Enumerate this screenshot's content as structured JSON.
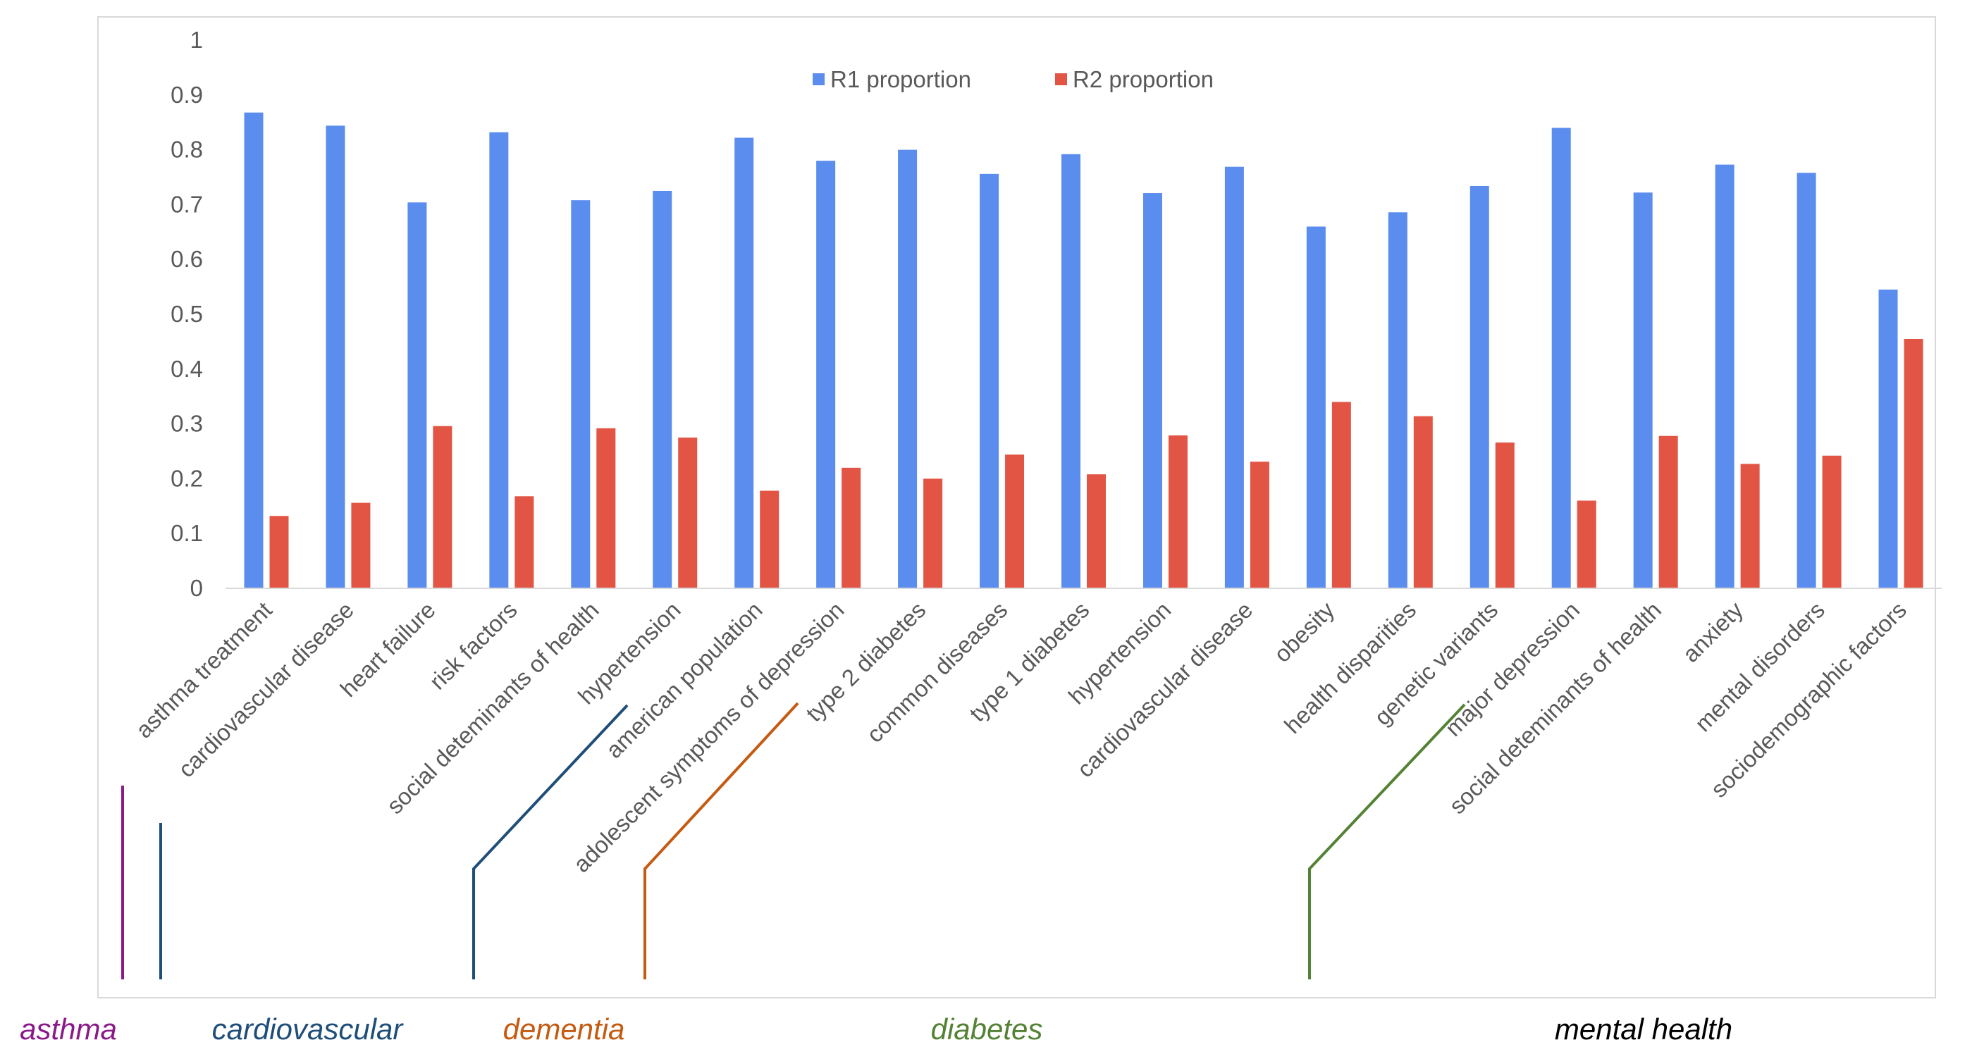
{
  "chart_data": {
    "type": "bar",
    "title": "",
    "xlabel": "",
    "ylabel": "",
    "ylim": [
      0,
      1
    ],
    "yticks": [
      "0",
      "0.1",
      "0.2",
      "0.3",
      "0.4",
      "0.5",
      "0.6",
      "0.7",
      "0.8",
      "0.9",
      "1"
    ],
    "grid": false,
    "legend_position": "top-center",
    "categories": [
      "asthma treatment",
      "cardiovascular disease",
      "heart failure",
      "risk factors",
      "social deteminants of health",
      "hypertension",
      "american population",
      "adolescent symptoms of depression",
      "type 2 diabetes",
      "common diseases",
      "type 1 diabetes",
      "hypertension",
      "cardiovascular disease",
      "obesity",
      "health disparities",
      "genetic variants",
      "major depression",
      "social deteminants of health",
      "anxiety",
      "mental disorders",
      "sociodemographic factors"
    ],
    "series": [
      {
        "name": "R1 proportion",
        "color": "#5B8DEF",
        "values": [
          0.868,
          0.844,
          0.704,
          0.832,
          0.708,
          0.725,
          0.822,
          0.78,
          0.8,
          0.756,
          0.792,
          0.721,
          0.769,
          0.66,
          0.686,
          0.734,
          0.84,
          0.722,
          0.773,
          0.758,
          0.545
        ]
      },
      {
        "name": "R2 proportion",
        "color": "#E25545",
        "values": [
          0.132,
          0.156,
          0.296,
          0.168,
          0.292,
          0.275,
          0.178,
          0.22,
          0.2,
          0.244,
          0.208,
          0.279,
          0.231,
          0.34,
          0.314,
          0.266,
          0.16,
          0.278,
          0.227,
          0.242,
          0.455
        ]
      }
    ],
    "groups": [
      {
        "name": "asthma",
        "color": "#8B1A89",
        "start": 0,
        "end": 0
      },
      {
        "name": "cardiovascular",
        "color": "#1F4E79",
        "start": 1,
        "end": 5
      },
      {
        "name": "dementia",
        "color": "#C55A11",
        "start": 6,
        "end": 7
      },
      {
        "name": "diabetes",
        "color": "#548235",
        "start": 8,
        "end": 15
      },
      {
        "name": "mental health",
        "color": "#000000",
        "start": 16,
        "end": 20
      }
    ]
  }
}
